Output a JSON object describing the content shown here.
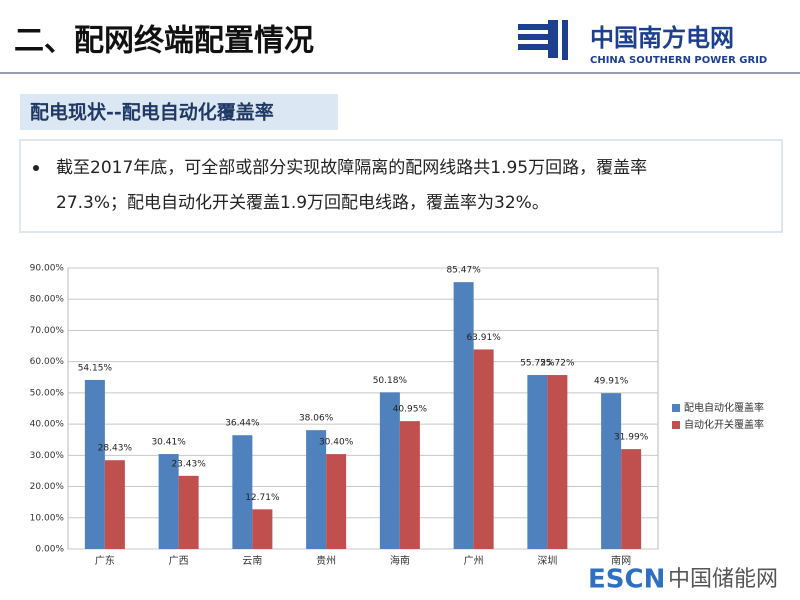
{
  "header": {
    "title": "二、配网终端配置情况",
    "logo_cn": "中国南方电网",
    "logo_en": "CHINA SOUTHERN POWER GRID"
  },
  "subtitle": "配电现状--配电自动化覆盖率",
  "bullet": {
    "lines": [
      "截至2017年底，可全部或部分实现故障隔离的配网线路共1.95万回路，覆盖率",
      "27.3%；配电自动化开关覆盖1.9万回配电线路，覆盖率为32%。"
    ]
  },
  "watermark": {
    "brand": "ESCN",
    "text": "中国储能网"
  },
  "chart_data": {
    "type": "bar",
    "categories": [
      "广东",
      "广西",
      "云南",
      "贵州",
      "海南",
      "广州",
      "深圳",
      "南网"
    ],
    "series": [
      {
        "name": "配电自动化覆盖率",
        "color": "#4f81bd",
        "values": [
          54.15,
          30.41,
          36.44,
          38.06,
          50.18,
          85.47,
          55.72,
          49.91
        ],
        "value_labels": [
          "54.15%",
          "30.41%",
          "36.44%",
          "38.06%",
          "50.18%",
          "85.47%",
          "55.72%",
          "49.91%"
        ]
      },
      {
        "name": "自动化开关覆盖率",
        "color": "#c0504d",
        "values": [
          28.43,
          23.43,
          12.71,
          30.4,
          40.95,
          63.91,
          55.72,
          31.99
        ],
        "value_labels": [
          "28.43%",
          "23.43%",
          "12.71%",
          "30.40%",
          "40.95%",
          "63.91%",
          "55.72%",
          "31.99%"
        ]
      }
    ],
    "ylim": [
      0,
      90
    ],
    "yticks": [
      {
        "value": 0,
        "label": "0.00%"
      },
      {
        "value": 10,
        "label": "10.00%"
      },
      {
        "value": 20,
        "label": "20.00%"
      },
      {
        "value": 30,
        "label": "30.00%"
      },
      {
        "value": 40,
        "label": "40.00%"
      },
      {
        "value": 50,
        "label": "50.00%"
      },
      {
        "value": 60,
        "label": "60.00%"
      },
      {
        "value": 70,
        "label": "70.00%"
      },
      {
        "value": 80,
        "label": "80.00%"
      },
      {
        "value": 90,
        "label": "90.00%"
      }
    ],
    "grid": true,
    "legend": "right"
  }
}
